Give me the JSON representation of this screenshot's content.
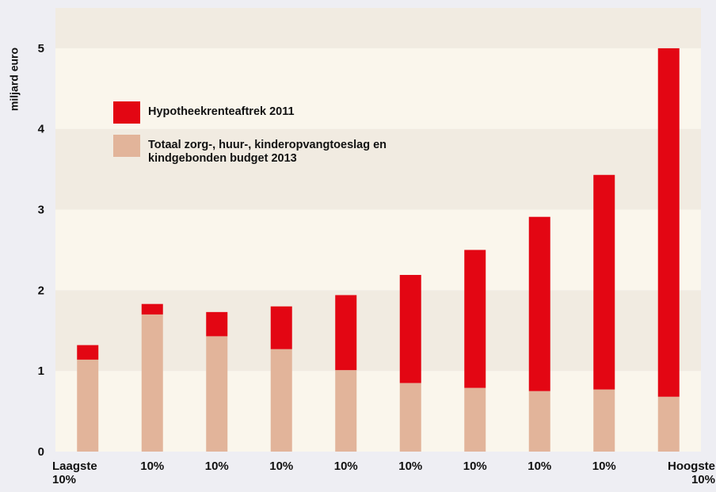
{
  "chart_data": {
    "type": "stacked_bar",
    "y_label": "miljard euro",
    "categories": [
      "Laagste 10%",
      "10%",
      "10%",
      "10%",
      "10%",
      "10%",
      "10%",
      "10%",
      "10%",
      "Hoogste 10%"
    ],
    "series": [
      {
        "name": "Totaal zorg-, huur-, kinderopvangtoeslag en kindgebonden budget 2013",
        "color": "#e2b49a",
        "values": [
          1.14,
          1.7,
          1.43,
          1.27,
          1.01,
          0.85,
          0.79,
          0.75,
          0.77,
          0.68
        ]
      },
      {
        "name": "Hypotheekrenteaftrek 2011",
        "color": "#e30613",
        "values": [
          0.18,
          0.13,
          0.3,
          0.53,
          0.93,
          1.34,
          1.71,
          2.16,
          2.66,
          4.32
        ]
      }
    ],
    "ylim": [
      0,
      5.5
    ],
    "yticks": [
      0,
      1,
      2,
      3,
      4,
      5
    ]
  }
}
